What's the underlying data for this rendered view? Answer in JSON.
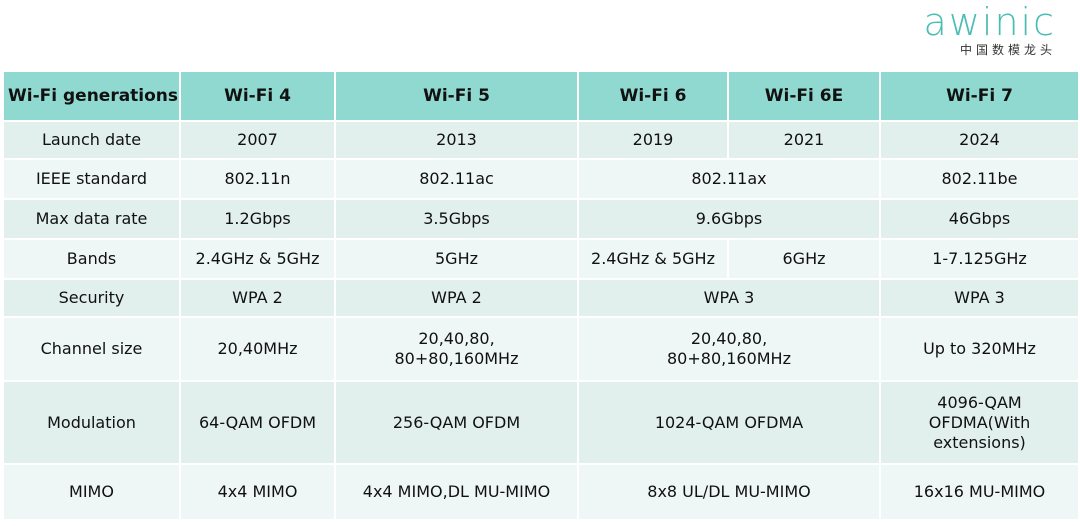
{
  "logo": {
    "brand": "awinic",
    "tagline": "中国数模龙头"
  },
  "table": {
    "header": [
      "Wi-Fi generations",
      "Wi-Fi 4",
      "Wi-Fi 5",
      "Wi-Fi 6",
      "Wi-Fi 6E",
      "Wi-Fi 7"
    ],
    "rows": [
      [
        "Launch date",
        "2007",
        "2013",
        "2019",
        "2021",
        "2024"
      ],
      [
        "IEEE standard",
        "802.11n",
        "802.11ac",
        "802.11ax",
        "802.11be"
      ],
      [
        "Max data rate",
        "1.2Gbps",
        "3.5Gbps",
        "9.6Gbps",
        "46Gbps"
      ],
      [
        "Bands",
        "2.4GHz & 5GHz",
        "5GHz",
        "2.4GHz & 5GHz",
        "6GHz",
        "1-7.125GHz"
      ],
      [
        "Security",
        "WPA 2",
        "WPA 2",
        "WPA 3",
        "WPA 3"
      ],
      [
        "Channel size",
        "20,40MHz",
        [
          "20,40,80,",
          "80+80,160MHz"
        ],
        [
          "20,40,80,",
          "80+80,160MHz"
        ],
        "Up to 320MHz"
      ],
      [
        "Modulation",
        "64-QAM OFDM",
        "256-QAM OFDM",
        "1024-QAM OFDMA",
        [
          "4096-QAM",
          "OFDMA(With",
          "extensions)"
        ]
      ],
      [
        "MIMO",
        "4x4 MIMO",
        "4x4 MIMO,DL MU-MIMO",
        "8x8 UL/DL MU-MIMO",
        "16x16 MU-MIMO"
      ]
    ]
  }
}
